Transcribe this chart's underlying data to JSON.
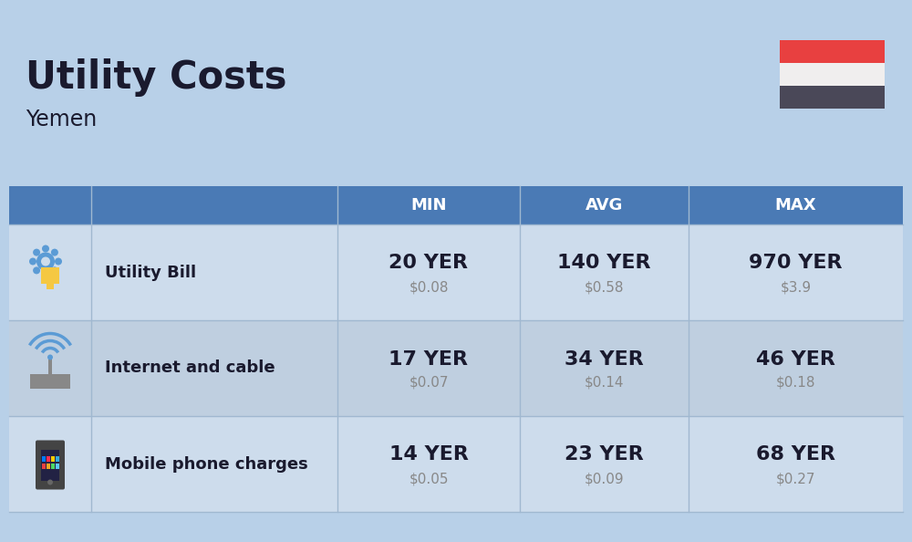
{
  "title": "Utility Costs",
  "subtitle": "Yemen",
  "background_color": "#b8d0e8",
  "table_header_color": "#4a7ab5",
  "table_header_text_color": "#ffffff",
  "row_color_odd": "#cddcec",
  "row_color_even": "#bfcfe0",
  "columns": [
    "MIN",
    "AVG",
    "MAX"
  ],
  "rows": [
    {
      "label": "Utility Bill",
      "min_yer": "20 YER",
      "min_usd": "$0.08",
      "avg_yer": "140 YER",
      "avg_usd": "$0.58",
      "max_yer": "970 YER",
      "max_usd": "$3.9",
      "icon": "utility"
    },
    {
      "label": "Internet and cable",
      "min_yer": "17 YER",
      "min_usd": "$0.07",
      "avg_yer": "34 YER",
      "avg_usd": "$0.14",
      "max_yer": "46 YER",
      "max_usd": "$0.18",
      "icon": "internet"
    },
    {
      "label": "Mobile phone charges",
      "min_yer": "14 YER",
      "min_usd": "$0.05",
      "avg_yer": "23 YER",
      "avg_usd": "$0.09",
      "max_yer": "68 YER",
      "max_usd": "$0.27",
      "icon": "mobile"
    }
  ],
  "flag_red": "#e84040",
  "flag_white": "#f0eeee",
  "flag_dark": "#4a4858",
  "title_fontsize": 30,
  "subtitle_fontsize": 17,
  "header_fontsize": 13,
  "label_fontsize": 13,
  "value_fontsize": 16,
  "usd_fontsize": 11,
  "text_dark": "#1a1a2e",
  "usd_color": "#888888",
  "divider_color": "#a0b8d0"
}
